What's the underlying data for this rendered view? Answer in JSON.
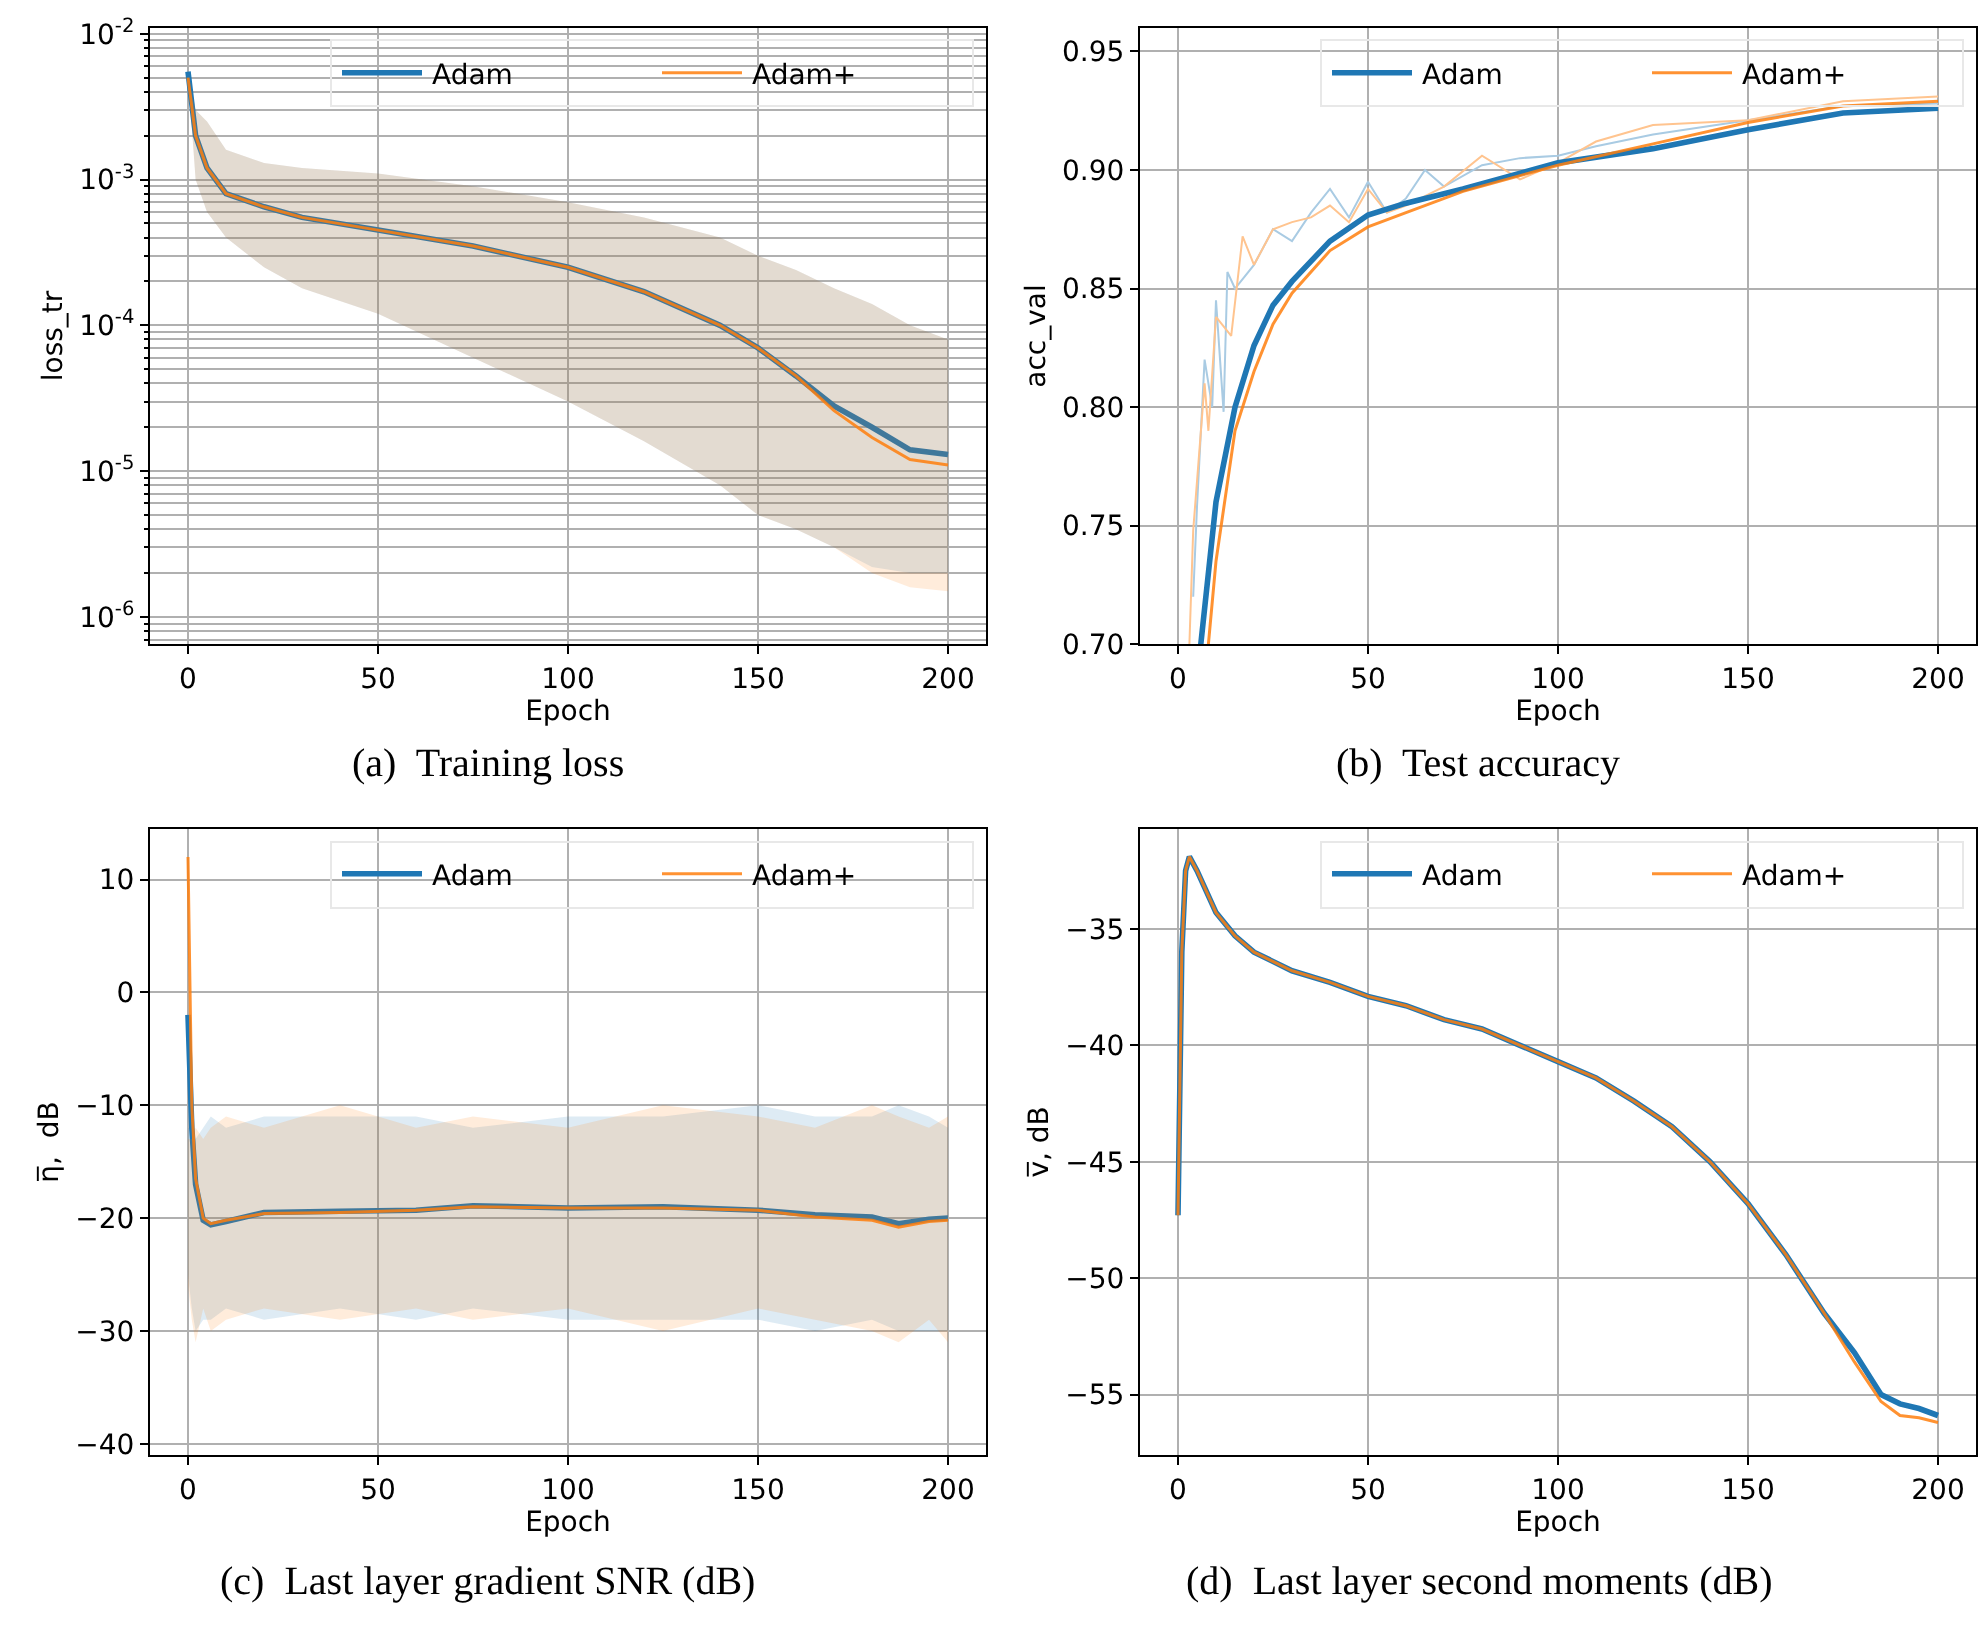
{
  "chart_data": [
    {
      "type": "line",
      "xlabel": "Epoch",
      "ylabel": "loss_tr",
      "log": "y",
      "grid": true,
      "legend": "top right",
      "xlim": [
        -10,
        210
      ],
      "xticks": [
        0,
        50,
        100,
        150,
        200
      ],
      "ylim": [
        6.5e-07,
        0.011
      ],
      "yticks": [
        {
          "value": 1e-06,
          "label": "10$^{-6}$"
        },
        {
          "value": 1e-05,
          "label": "10$^{-5}$"
        },
        {
          "value": 0.0001,
          "label": "10$^{-4}$"
        },
        {
          "value": 0.001,
          "label": "10$^{-3}$"
        },
        {
          "value": 0.01,
          "label": "10$^{-2}$"
        }
      ],
      "annotations": [
        "(a)  Training loss"
      ],
      "x": [
        0,
        2,
        5,
        10,
        20,
        30,
        50,
        75,
        100,
        120,
        140,
        150,
        160,
        170,
        180,
        190,
        200
      ],
      "series": [
        {
          "name": "Adam",
          "color": "#1f77b4",
          "values": [
            0.0055,
            0.002,
            0.0012,
            0.0008,
            0.00065,
            0.00055,
            0.00045,
            0.00035,
            0.00025,
            0.00017,
            0.0001,
            7e-05,
            4.5e-05,
            2.8e-05,
            2e-05,
            1.4e-05,
            1.3e-05
          ],
          "upper": [
            0.0055,
            0.003,
            0.0025,
            0.0016,
            0.0013,
            0.0012,
            0.0011,
            0.0009,
            0.0007,
            0.00055,
            0.0004,
            0.0003,
            0.00024,
            0.00018,
            0.00014,
            0.0001,
            8e-05
          ],
          "lower": [
            0.0055,
            0.001,
            0.0006,
            0.0004,
            0.00025,
            0.00018,
            0.00012,
            6e-05,
            3e-05,
            1.6e-05,
            8e-06,
            5e-06,
            4e-06,
            3e-06,
            2.2e-06,
            2e-06,
            2e-06
          ]
        },
        {
          "name": "Adam+",
          "color": "#ff7f0e",
          "values": [
            0.005,
            0.002,
            0.0012,
            0.0008,
            0.00065,
            0.00055,
            0.00045,
            0.00035,
            0.00025,
            0.00017,
            0.0001,
            7e-05,
            4.5e-05,
            2.6e-05,
            1.7e-05,
            1.2e-05,
            1.1e-05
          ],
          "upper": [
            0.005,
            0.003,
            0.0025,
            0.0016,
            0.0013,
            0.0012,
            0.0011,
            0.0009,
            0.0007,
            0.00055,
            0.0004,
            0.0003,
            0.00024,
            0.00018,
            0.00014,
            0.0001,
            8e-05
          ],
          "lower": [
            0.005,
            0.001,
            0.0006,
            0.0004,
            0.00025,
            0.00018,
            0.00012,
            6e-05,
            3e-05,
            1.6e-05,
            8e-06,
            5e-06,
            4e-06,
            3e-06,
            2e-06,
            1.6e-06,
            1.5e-06
          ]
        }
      ]
    },
    {
      "type": "line",
      "xlabel": "Epoch",
      "ylabel": "acc_val",
      "grid": true,
      "legend": "top right",
      "xlim": [
        -10,
        210
      ],
      "xticks": [
        0,
        50,
        100,
        150,
        200
      ],
      "ylim": [
        0.7,
        0.96
      ],
      "yticks": [
        {
          "value": 0.7,
          "label": "0.70"
        },
        {
          "value": 0.75,
          "label": "0.75"
        },
        {
          "value": 0.8,
          "label": "0.80"
        },
        {
          "value": 0.85,
          "label": "0.85"
        },
        {
          "value": 0.9,
          "label": "0.90"
        },
        {
          "value": 0.95,
          "label": "0.95"
        }
      ],
      "annotations": [
        "(b)  Test accuracy"
      ],
      "series": [
        {
          "color": "#a9cbe3",
          "x": [
            4,
            5,
            7,
            9,
            10,
            12,
            13,
            15,
            20,
            25,
            30,
            35,
            40,
            45,
            50,
            55,
            60,
            65,
            70,
            80,
            90,
            100,
            110,
            125,
            150,
            175,
            200
          ],
          "values": [
            0.72,
            0.758,
            0.82,
            0.8,
            0.845,
            0.798,
            0.857,
            0.85,
            0.86,
            0.875,
            0.87,
            0.882,
            0.892,
            0.88,
            0.895,
            0.882,
            0.888,
            0.9,
            0.893,
            0.902,
            0.905,
            0.906,
            0.91,
            0.915,
            0.921,
            0.927,
            0.928
          ]
        },
        {
          "color": "#ffc48f",
          "x": [
            3,
            4,
            7,
            8,
            10,
            14,
            17,
            20,
            25,
            30,
            35,
            40,
            45,
            50,
            55,
            60,
            70,
            80,
            90,
            100,
            110,
            125,
            150,
            175,
            200
          ],
          "values": [
            0.7,
            0.748,
            0.81,
            0.79,
            0.838,
            0.83,
            0.872,
            0.86,
            0.875,
            0.878,
            0.88,
            0.885,
            0.878,
            0.892,
            0.882,
            0.885,
            0.893,
            0.906,
            0.896,
            0.903,
            0.912,
            0.919,
            0.921,
            0.929,
            0.931
          ]
        },
        {
          "name": "Adam",
          "color": "#1f77b4",
          "x": [
            6,
            8,
            10,
            15,
            20,
            25,
            30,
            40,
            50,
            60,
            75,
            100,
            125,
            150,
            175,
            200
          ],
          "values": [
            0.7,
            0.73,
            0.76,
            0.8,
            0.826,
            0.843,
            0.853,
            0.87,
            0.881,
            0.886,
            0.892,
            0.903,
            0.909,
            0.917,
            0.924,
            0.926
          ]
        },
        {
          "name": "Adam+",
          "color": "#ff7f0e",
          "x": [
            8,
            10,
            15,
            20,
            25,
            30,
            40,
            50,
            60,
            75,
            100,
            125,
            150,
            175,
            200
          ],
          "values": [
            0.7,
            0.735,
            0.79,
            0.815,
            0.835,
            0.848,
            0.866,
            0.876,
            0.882,
            0.891,
            0.902,
            0.911,
            0.92,
            0.927,
            0.929
          ]
        }
      ]
    },
    {
      "type": "line",
      "xlabel": "Epoch",
      "ylabel": "η̅,  dB",
      "grid": true,
      "legend": "top right",
      "xlim": [
        -10,
        210
      ],
      "xticks": [
        0,
        50,
        100,
        150,
        200
      ],
      "ylim": [
        -41,
        14.5
      ],
      "yticks": [
        -40,
        -30,
        -20,
        -10,
        0,
        10
      ],
      "annotations": [
        "(c)  Last layer gradient SNR (dB)"
      ],
      "x": [
        0,
        1,
        2,
        4,
        6,
        10,
        20,
        40,
        60,
        75,
        100,
        125,
        150,
        165,
        180,
        187,
        195,
        200
      ],
      "series": [
        {
          "name": "Adam",
          "color": "#1f77b4",
          "values": [
            -2,
            -12,
            -17,
            -20.2,
            -20.6,
            -20.3,
            -19.5,
            -19.4,
            -19.3,
            -18.9,
            -19.1,
            -19.0,
            -19.3,
            -19.7,
            -19.9,
            -20.5,
            -20.1,
            -20.0
          ],
          "upper": [
            -12,
            -12,
            -13,
            -12,
            -11,
            -12,
            -11,
            -11,
            -11,
            -12,
            -11,
            -11,
            -10,
            -11,
            -11,
            -10,
            -11,
            -12
          ],
          "lower": [
            -25,
            -28,
            -30,
            -29,
            -29,
            -28,
            -29,
            -28,
            -29,
            -28,
            -29,
            -29,
            -29,
            -30,
            -29,
            -30,
            -30,
            -30
          ]
        },
        {
          "name": "Adam+",
          "color": "#ff7f0e",
          "values": [
            12,
            -10,
            -16.5,
            -20,
            -20.5,
            -20.2,
            -19.6,
            -19.5,
            -19.3,
            -19.0,
            -19.1,
            -19.1,
            -19.3,
            -19.9,
            -20.2,
            -20.8,
            -20.3,
            -20.2
          ],
          "upper": [
            -13,
            -13,
            -12,
            -13,
            -12,
            -11,
            -12,
            -10,
            -12,
            -11,
            -12,
            -10,
            -11,
            -12,
            -10,
            -11,
            -12,
            -11
          ],
          "lower": [
            -26,
            -29,
            -31,
            -28,
            -30,
            -29,
            -28,
            -29,
            -28,
            -29,
            -28,
            -30,
            -28,
            -29,
            -30,
            -31,
            -29,
            -31
          ]
        }
      ]
    },
    {
      "type": "line",
      "xlabel": "Epoch",
      "ylabel": "v̅, dB",
      "grid": true,
      "legend": "top right",
      "xlim": [
        -10,
        210
      ],
      "xticks": [
        0,
        50,
        100,
        150,
        200
      ],
      "ylim": [
        -57.6,
        -30.7
      ],
      "yticks": [
        -55,
        -50,
        -45,
        -40,
        -35
      ],
      "annotations": [
        "(d)  Last layer second moments (dB)"
      ],
      "x": [
        0,
        1,
        2,
        3,
        5,
        10,
        15,
        20,
        30,
        40,
        50,
        60,
        70,
        80,
        90,
        100,
        110,
        120,
        130,
        140,
        150,
        160,
        170,
        178,
        185,
        190,
        195,
        200
      ],
      "series": [
        {
          "name": "Adam",
          "color": "#1f77b4",
          "values": [
            -47.3,
            -36,
            -32.5,
            -31.9,
            -32.5,
            -34.3,
            -35.3,
            -36,
            -36.8,
            -37.3,
            -37.9,
            -38.3,
            -38.9,
            -39.3,
            -40,
            -40.7,
            -41.4,
            -42.4,
            -43.5,
            -45,
            -46.8,
            -49,
            -51.5,
            -53.2,
            -55,
            -55.4,
            -55.6,
            -55.9
          ]
        },
        {
          "name": "Adam+",
          "color": "#ff7f0e",
          "values": [
            -47.3,
            -36,
            -32.5,
            -31.9,
            -32.5,
            -34.3,
            -35.3,
            -36,
            -36.8,
            -37.3,
            -37.9,
            -38.3,
            -38.9,
            -39.3,
            -40,
            -40.7,
            -41.4,
            -42.4,
            -43.5,
            -45,
            -46.8,
            -49,
            -51.5,
            -53.6,
            -55.3,
            -55.9,
            -56.0,
            -56.2
          ]
        }
      ]
    }
  ]
}
